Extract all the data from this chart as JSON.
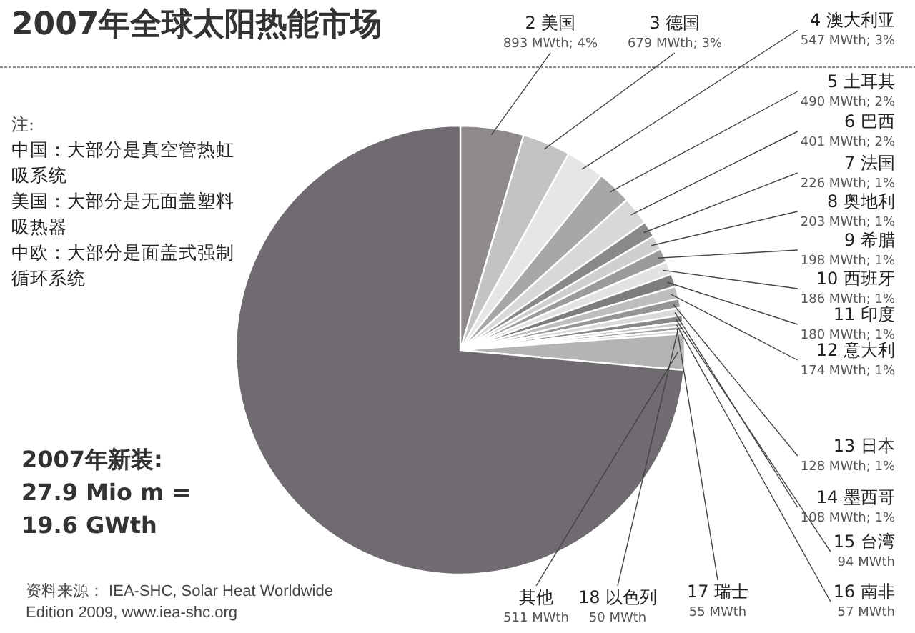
{
  "chart_data": {
    "type": "pie",
    "title": "2007年全球太阳热能市场",
    "categories": [
      "2 美国",
      "3 德国",
      "4 澳大利亚",
      "5 土耳其",
      "6 巴西",
      "7 法国",
      "8 奥地利",
      "9 希腊",
      "10 西班牙",
      "11 印度",
      "12 意大利",
      "13 日本",
      "14 墨西哥",
      "15 台湾",
      "16 南非",
      "17 瑞士",
      "18 以色列",
      "其他",
      null
    ],
    "values": [
      893,
      679,
      547,
      490,
      401,
      226,
      203,
      198,
      186,
      180,
      174,
      128,
      108,
      94,
      57,
      55,
      50,
      511,
      14420
    ],
    "value_labels": [
      "893 MWth; 4%",
      "679 MWth; 3%",
      "547 MWth; 3%",
      "490 MWth; 2%",
      "401 MWth; 2%",
      "226 MWth; 1%",
      "203 MWth; 1%",
      "198 MWth; 1%",
      "186 MWth; 1%",
      "180 MWth; 1%",
      "174 MWth; 1%",
      "128 MWth; 1%",
      "108 MWth; 1%",
      "94 MWth",
      "57 MWth",
      "55 MWth",
      "50 MWth",
      "511 MWth",
      null
    ],
    "colors": [
      "#8e8a8e",
      "#c4c2c4",
      "#e6e6e6",
      "#a8a6a8",
      "#d8d8d8",
      "#8a888a",
      "#cfcfcf",
      "#9c9a9c",
      "#e2e2e2",
      "#7e7c7e",
      "#bebebe",
      "#969496",
      "#dadada",
      "#888688",
      "#c8c8c8",
      "#a0a0a0",
      "#d2d2d2",
      "#b4b4b4",
      "#6f6b70"
    ],
    "annotations": [
      "注:",
      "中国：大部分是真空管热虹吸系统",
      "美国：大部分是无面盖塑料吸热器",
      "中欧：大部分是面盖式强制循环系统",
      "2007年新装:",
      "27.9 Mio m =",
      "19.6 GWth",
      "资料来源： IEA-SHC, Solar Heat Worldwide",
      "Edition 2009, www.iea-shc.org"
    ]
  }
}
